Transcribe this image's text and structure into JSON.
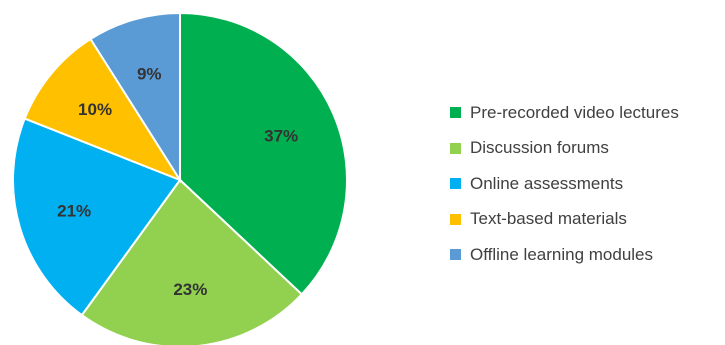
{
  "chart_data": {
    "type": "pie",
    "title": "",
    "categories": [
      "Pre-recorded video lectures",
      "Discussion forums",
      "Online assessments",
      "Text-based materials",
      "Offline learning modules"
    ],
    "values": [
      37,
      23,
      21,
      10,
      9
    ],
    "labels": [
      "37%",
      "23%",
      "21%",
      "10%",
      "9%"
    ],
    "colors": [
      "#00B050",
      "#92D050",
      "#00B0F0",
      "#FFC000",
      "#5B9BD5"
    ],
    "legend_position": "right",
    "start": "top",
    "direction": "clockwise"
  }
}
